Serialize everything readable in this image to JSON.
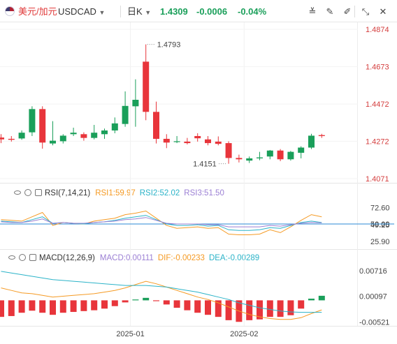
{
  "toolbar": {
    "pair_name": "美元/加元",
    "pair_code": "USDCAD",
    "period": "日K",
    "price": "1.4309",
    "change": "-0.0006",
    "change_pct": "-0.04%"
  },
  "colors": {
    "up": "#1a9f5a",
    "down": "#e8353b",
    "rsi1": "#f59a23",
    "rsi2": "#2bb3c8",
    "rsi3": "#9b7fd4",
    "dif": "#f59a23",
    "dea": "#2bb3c8"
  },
  "chart_data": [
    {
      "type": "candlestick",
      "y_axis_labels": [
        "1.4874",
        "1.4673",
        "1.4472",
        "1.4272",
        "1.4071"
      ],
      "ylim": [
        1.4071,
        1.4874
      ],
      "x_tick_labels": [
        "2025-01",
        "2025-02"
      ],
      "annotations": {
        "high_label": "1.4793",
        "low_label": "1.4151"
      },
      "candles": [
        {
          "o": 1.4292,
          "h": 1.431,
          "l": 1.4262,
          "c": 1.4282
        },
        {
          "o": 1.4285,
          "h": 1.43,
          "l": 1.427,
          "c": 1.428
        },
        {
          "o": 1.4287,
          "h": 1.433,
          "l": 1.428,
          "c": 1.4318
        },
        {
          "o": 1.432,
          "h": 1.446,
          "l": 1.43,
          "c": 1.4445
        },
        {
          "o": 1.4445,
          "h": 1.446,
          "l": 1.4232,
          "c": 1.4265
        },
        {
          "o": 1.426,
          "h": 1.438,
          "l": 1.425,
          "c": 1.4275
        },
        {
          "o": 1.4272,
          "h": 1.431,
          "l": 1.426,
          "c": 1.4302
        },
        {
          "o": 1.431,
          "h": 1.4345,
          "l": 1.43,
          "c": 1.4318
        },
        {
          "o": 1.431,
          "h": 1.432,
          "l": 1.4275,
          "c": 1.429
        },
        {
          "o": 1.429,
          "h": 1.436,
          "l": 1.4282,
          "c": 1.4318
        },
        {
          "o": 1.431,
          "h": 1.434,
          "l": 1.4285,
          "c": 1.433
        },
        {
          "o": 1.433,
          "h": 1.44,
          "l": 1.4315,
          "c": 1.4368
        },
        {
          "o": 1.4365,
          "h": 1.454,
          "l": 1.435,
          "c": 1.4462
        },
        {
          "o": 1.446,
          "h": 1.4605,
          "l": 1.435,
          "c": 1.4495
        },
        {
          "o": 1.47,
          "h": 1.4793,
          "l": 1.4385,
          "c": 1.443
        },
        {
          "o": 1.443,
          "h": 1.4485,
          "l": 1.426,
          "c": 1.4285
        },
        {
          "o": 1.4285,
          "h": 1.431,
          "l": 1.4235,
          "c": 1.4265
        },
        {
          "o": 1.427,
          "h": 1.43,
          "l": 1.4262,
          "c": 1.4272
        },
        {
          "o": 1.427,
          "h": 1.429,
          "l": 1.4255,
          "c": 1.4262
        },
        {
          "o": 1.43,
          "h": 1.4315,
          "l": 1.427,
          "c": 1.4288
        },
        {
          "o": 1.4282,
          "h": 1.43,
          "l": 1.425,
          "c": 1.4262
        },
        {
          "o": 1.427,
          "h": 1.4298,
          "l": 1.425,
          "c": 1.4258
        },
        {
          "o": 1.4262,
          "h": 1.4272,
          "l": 1.4151,
          "c": 1.4182
        },
        {
          "o": 1.4182,
          "h": 1.42,
          "l": 1.4158,
          "c": 1.4175
        },
        {
          "o": 1.4168,
          "h": 1.419,
          "l": 1.4155,
          "c": 1.418
        },
        {
          "o": 1.418,
          "h": 1.4215,
          "l": 1.417,
          "c": 1.4185
        },
        {
          "o": 1.419,
          "h": 1.4225,
          "l": 1.4175,
          "c": 1.4222
        },
        {
          "o": 1.4222,
          "h": 1.423,
          "l": 1.4165,
          "c": 1.4175
        },
        {
          "o": 1.4175,
          "h": 1.422,
          "l": 1.4168,
          "c": 1.4215
        },
        {
          "o": 1.421,
          "h": 1.4245,
          "l": 1.418,
          "c": 1.4238
        },
        {
          "o": 1.4238,
          "h": 1.4312,
          "l": 1.423,
          "c": 1.4302
        },
        {
          "o": 1.4305,
          "h": 1.4312,
          "l": 1.429,
          "c": 1.43
        }
      ]
    },
    {
      "type": "line",
      "name": "RSI",
      "params": "RSI(7,14,21)",
      "y_axis_labels": [
        "72.60",
        "50.00",
        "49.25",
        "25.90"
      ],
      "ylim": [
        20,
        80
      ],
      "series": [
        {
          "name": "RSI1",
          "value_label": "RSI1:59.97",
          "values": [
            56,
            55,
            54,
            60,
            66,
            48,
            52,
            51,
            50,
            54,
            56,
            58,
            63,
            65,
            68,
            58,
            48,
            44,
            45,
            46,
            44,
            45,
            36,
            35,
            35,
            36,
            42,
            38,
            46,
            55,
            63,
            60
          ]
        },
        {
          "name": "RSI2",
          "value_label": "RSI2:52.02",
          "values": [
            54,
            53,
            52,
            56,
            60,
            51,
            52,
            51,
            50,
            52,
            53,
            55,
            58,
            60,
            62,
            56,
            50,
            48,
            48,
            49,
            47,
            48,
            42,
            41,
            41,
            42,
            45,
            44,
            48,
            52,
            54,
            52
          ]
        },
        {
          "name": "RSI3",
          "value_label": "RSI3:51.50",
          "values": [
            53,
            52,
            52,
            54,
            57,
            51,
            52,
            51,
            51,
            52,
            53,
            54,
            56,
            57,
            59,
            55,
            51,
            50,
            50,
            50,
            49,
            49,
            46,
            46,
            46,
            46,
            48,
            47,
            49,
            51,
            52,
            51.5
          ]
        }
      ],
      "reference_lines": [
        50.0
      ]
    },
    {
      "type": "bar_line",
      "name": "MACD",
      "params": "MACD(12,26,9)",
      "y_axis_labels": [
        "0.00716",
        "0.00097",
        "-0.00521"
      ],
      "ylim": [
        -0.006,
        0.0085
      ],
      "series": [
        {
          "name": "MACD",
          "value_label": "MACD:0.00111",
          "values": [
            -0.004,
            -0.0038,
            -0.003,
            -0.0025,
            -0.003,
            -0.0035,
            -0.003,
            -0.0028,
            -0.0026,
            -0.0024,
            -0.002,
            -0.0014,
            -0.0005,
            0.0002,
            0.0006,
            -0.0002,
            -0.001,
            -0.0018,
            -0.0024,
            -0.003,
            -0.0035,
            -0.004,
            -0.0048,
            -0.0052,
            -0.0048,
            -0.0046,
            -0.004,
            -0.004,
            -0.0036,
            -0.002,
            0.0004,
            0.0011
          ]
        },
        {
          "name": "DIF",
          "value_label": "DIF:-0.00233",
          "values": [
            0.003,
            0.0024,
            0.0018,
            0.0016,
            0.0012,
            0.0008,
            0.001,
            0.0012,
            0.0014,
            0.0016,
            0.002,
            0.0024,
            0.003,
            0.0038,
            0.0046,
            0.004,
            0.0032,
            0.0024,
            0.0016,
            0.0008,
            0.0002,
            -0.0006,
            -0.0016,
            -0.0026,
            -0.0034,
            -0.004,
            -0.0044,
            -0.0046,
            -0.0046,
            -0.0042,
            -0.0032,
            -0.0023
          ]
        },
        {
          "name": "DEA",
          "value_label": "DEA:-0.00289",
          "values": [
            0.007,
            0.0066,
            0.0062,
            0.0058,
            0.0054,
            0.005,
            0.0048,
            0.0046,
            0.0044,
            0.0042,
            0.004,
            0.0038,
            0.0036,
            0.0036,
            0.0036,
            0.0034,
            0.0032,
            0.0028,
            0.0024,
            0.002,
            0.0014,
            0.0008,
            0.0002,
            -0.0006,
            -0.0012,
            -0.0018,
            -0.0022,
            -0.0026,
            -0.0028,
            -0.0029,
            -0.0029,
            -0.0029
          ]
        }
      ]
    }
  ],
  "rsi_header": {
    "name": "RSI(7,14,21)",
    "rsi1": "RSI1:59.97",
    "rsi2": "RSI2:52.02",
    "rsi3": "RSI3:51.50"
  },
  "macd_header": {
    "name": "MACD(12,26,9)",
    "macd": "MACD:0.00111",
    "dif": "DIF:-0.00233",
    "dea": "DEA:-0.00289"
  }
}
